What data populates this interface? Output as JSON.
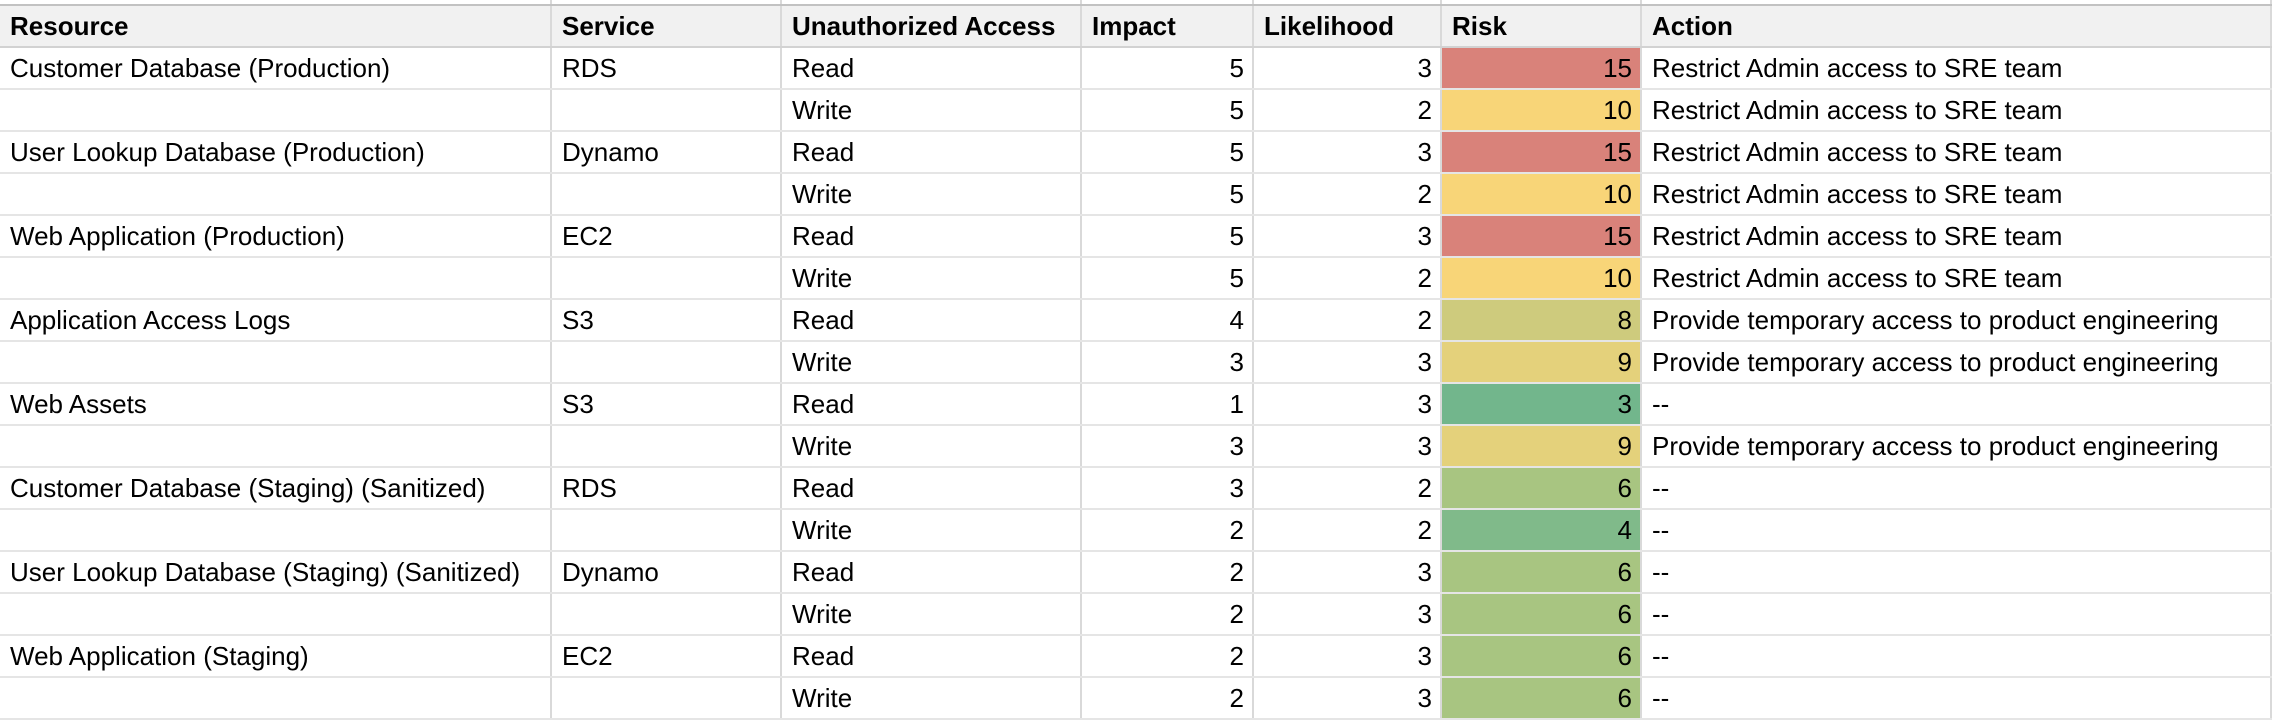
{
  "table": {
    "columns": [
      {
        "key": "resource",
        "label": "Resource",
        "align": "left"
      },
      {
        "key": "service",
        "label": "Service",
        "align": "left"
      },
      {
        "key": "access",
        "label": "Unauthorized Access",
        "align": "left"
      },
      {
        "key": "impact",
        "label": "Impact",
        "align": "right"
      },
      {
        "key": "likelihood",
        "label": "Likelihood",
        "align": "right"
      },
      {
        "key": "risk",
        "label": "Risk",
        "align": "right"
      },
      {
        "key": "action",
        "label": "Action",
        "align": "left"
      }
    ],
    "rows": [
      {
        "resource": "Customer Database (Production)",
        "service": "RDS",
        "access": "Read",
        "impact": 5,
        "likelihood": 3,
        "risk": 15,
        "action": "Restrict Admin access to SRE team"
      },
      {
        "resource": "",
        "service": "",
        "access": "Write",
        "impact": 5,
        "likelihood": 2,
        "risk": 10,
        "action": "Restrict Admin access to SRE team"
      },
      {
        "resource": "User Lookup Database (Production)",
        "service": "Dynamo",
        "access": "Read",
        "impact": 5,
        "likelihood": 3,
        "risk": 15,
        "action": "Restrict Admin access to SRE team"
      },
      {
        "resource": "",
        "service": "",
        "access": "Write",
        "impact": 5,
        "likelihood": 2,
        "risk": 10,
        "action": "Restrict Admin access to SRE team"
      },
      {
        "resource": "Web Application (Production)",
        "service": "EC2",
        "access": "Read",
        "impact": 5,
        "likelihood": 3,
        "risk": 15,
        "action": "Restrict Admin access to SRE team"
      },
      {
        "resource": "",
        "service": "",
        "access": "Write",
        "impact": 5,
        "likelihood": 2,
        "risk": 10,
        "action": "Restrict Admin access to SRE team"
      },
      {
        "resource": "Application Access Logs",
        "service": "S3",
        "access": "Read",
        "impact": 4,
        "likelihood": 2,
        "risk": 8,
        "action": "Provide temporary access to product engineering"
      },
      {
        "resource": "",
        "service": "",
        "access": "Write",
        "impact": 3,
        "likelihood": 3,
        "risk": 9,
        "action": "Provide temporary access to product engineering"
      },
      {
        "resource": "Web Assets",
        "service": "S3",
        "access": "Read",
        "impact": 1,
        "likelihood": 3,
        "risk": 3,
        "action": "--"
      },
      {
        "resource": "",
        "service": "",
        "access": "Write",
        "impact": 3,
        "likelihood": 3,
        "risk": 9,
        "action": "Provide temporary access to product engineering"
      },
      {
        "resource": "Customer Database (Staging) (Sanitized)",
        "service": "RDS",
        "access": "Read",
        "impact": 3,
        "likelihood": 2,
        "risk": 6,
        "action": "--"
      },
      {
        "resource": "",
        "service": "",
        "access": "Write",
        "impact": 2,
        "likelihood": 2,
        "risk": 4,
        "action": "--"
      },
      {
        "resource": "User Lookup Database (Staging) (Sanitized)",
        "service": "Dynamo",
        "access": "Read",
        "impact": 2,
        "likelihood": 3,
        "risk": 6,
        "action": "--"
      },
      {
        "resource": "",
        "service": "",
        "access": "Write",
        "impact": 2,
        "likelihood": 3,
        "risk": 6,
        "action": "--"
      },
      {
        "resource": "Web Application (Staging)",
        "service": "EC2",
        "access": "Read",
        "impact": 2,
        "likelihood": 3,
        "risk": 6,
        "action": "--"
      },
      {
        "resource": "",
        "service": "",
        "access": "Write",
        "impact": 2,
        "likelihood": 3,
        "risk": 6,
        "action": "--"
      }
    ],
    "risk_colors": {
      "3": "#72b68c",
      "4": "#80ba8a",
      "6": "#a8c581",
      "8": "#cecb7d",
      "9": "#e4d17b",
      "10": "#f8d578",
      "15": "#d9827a"
    },
    "colors": {
      "header_bg": "#f1f1f1",
      "gridline_horizontal": "#e5e5e5",
      "gridline_vertical": "#d9d9d9",
      "header_bottom_border": "#d2d2d2",
      "top_row_border": "#c2c2c2",
      "text": "#000000"
    }
  }
}
